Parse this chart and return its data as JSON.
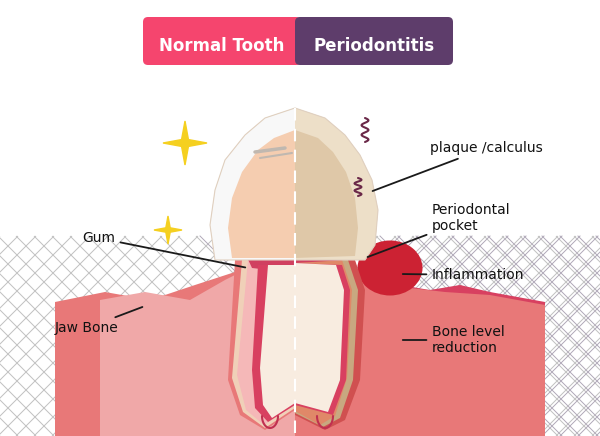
{
  "bg_color": "#ffffff",
  "title_left": "Normal Tooth",
  "title_right": "Periodontitis",
  "title_left_bg": "#f5456e",
  "title_right_bg": "#5e3d6b",
  "title_text_color": "#ffffff",
  "labels": {
    "gum": "Gum",
    "jaw_bone": "Jaw Bone",
    "plaque": "plaque /calculus",
    "periodontal": "Periodontal\npocket",
    "inflammation": "Inflammation",
    "bone_reduction": "Bone level\nreduction"
  },
  "colors": {
    "tooth_white_l": "#f8f8f8",
    "tooth_white_r": "#eddfc8",
    "tooth_dentin_l": "#f5cdb0",
    "tooth_dentin_r": "#dfc8a8",
    "pulp_dark": "#d04060",
    "pulp_light": "#e87890",
    "gum_outer_l": "#e87878",
    "gum_inner_l": "#f0a8a8",
    "gum_outer_r": "#d84060",
    "gum_inner_r": "#e87878",
    "root_outer_l": "#e87878",
    "root_inner_l": "#f5b8b8",
    "root_dentin_l": "#f0d0b8",
    "root_outer_r": "#d05050",
    "root_inner_r": "#e08868",
    "root_dentin_r": "#c8a880",
    "canal_pink": "#d84060",
    "canal_white": "#f8ece0",
    "canal_line": "#c03050",
    "bone_l": "#d8d8d8",
    "bone_r": "#c8c0cc",
    "bone_line_l": "#c0c0c0",
    "bone_line_r": "#b0a8b8",
    "inflamed": "#cc2233",
    "sparkle": "#f5d020",
    "wiggly": "#6a2848",
    "ann_line": "#1a1a1a",
    "ridge_line": "#c0b8b0"
  },
  "figsize": [
    6.0,
    4.36
  ],
  "dpi": 100
}
